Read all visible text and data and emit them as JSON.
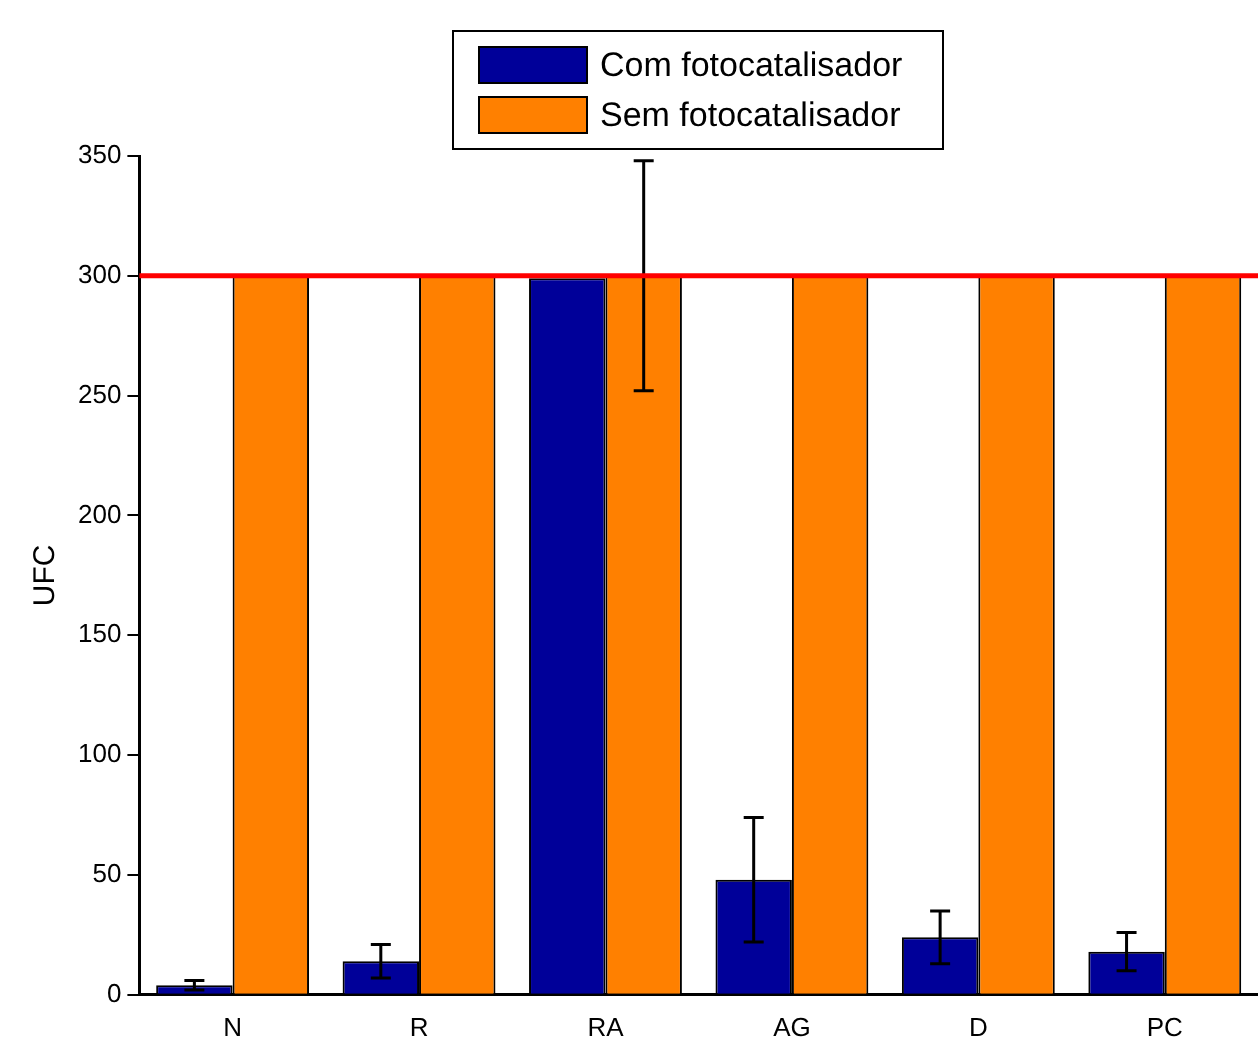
{
  "chart_data": {
    "type": "bar",
    "ylabel": "UFC",
    "categories": [
      "N",
      "R",
      "RA",
      "AG",
      "D",
      "PC"
    ],
    "series": [
      {
        "name": "Com fotocatalisador",
        "color": "#000099",
        "values": [
          4,
          14,
          299,
          48,
          24,
          18
        ],
        "errors": [
          2,
          7,
          null,
          26,
          11,
          8
        ]
      },
      {
        "name": "Sem fotocatalisador",
        "color": "#ff8000",
        "values": [
          300,
          300,
          300,
          300,
          300,
          300
        ],
        "errors": [
          null,
          null,
          48,
          null,
          null,
          null
        ]
      }
    ],
    "ylim": [
      0,
      350
    ],
    "yticks": [
      0,
      50,
      100,
      150,
      200,
      250,
      300,
      350
    ],
    "ref_lines": [
      {
        "axis": "y",
        "value": 300,
        "color": "#ff0000"
      }
    ],
    "legend": "top",
    "grid": false
  }
}
